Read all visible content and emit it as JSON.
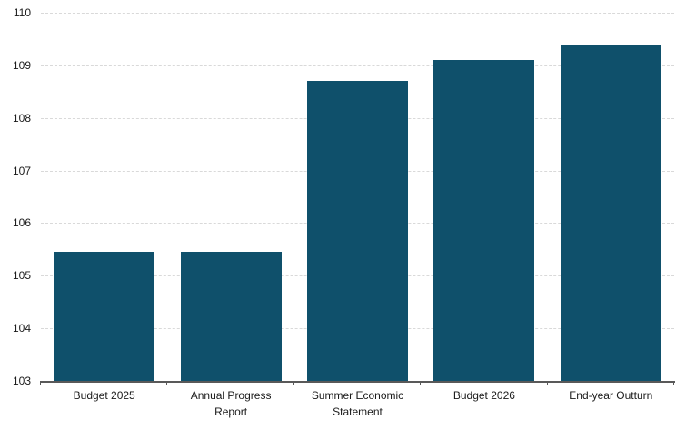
{
  "chart_data": {
    "type": "bar",
    "categories": [
      "Budget 2025",
      "Annual Progress Report",
      "Summer Economic Statement",
      "Budget 2026",
      "End-year Outturn"
    ],
    "values": [
      105.45,
      105.45,
      108.7,
      109.1,
      109.4
    ],
    "title": "",
    "xlabel": "",
    "ylabel": "",
    "ylim": [
      103,
      110
    ],
    "yticks": [
      103,
      104,
      105,
      106,
      107,
      108,
      109,
      110
    ],
    "grid": "horizontal-dashed",
    "legend": "none",
    "colors": {
      "bar": "#0F506B",
      "gridline": "#D9D9D9",
      "axis": "#595959",
      "text": "#1A1A1A",
      "background": "#FFFFFF"
    }
  }
}
